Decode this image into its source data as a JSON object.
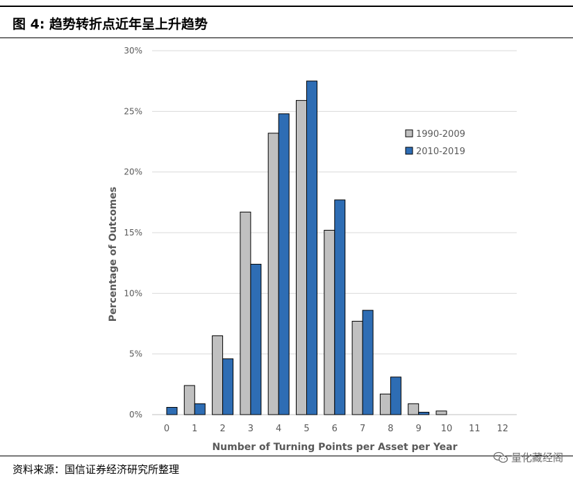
{
  "header": {
    "title": "图 4:  趋势转折点近年呈上升趋势"
  },
  "footer": {
    "source": "资料来源：国信证券经济研究所整理"
  },
  "watermark": {
    "text": "量化藏经阁",
    "icon": "wechat-icon"
  },
  "colors": {
    "series1": "#c0c0c0",
    "series2": "#2e6db4",
    "grid": "#d9d9d9",
    "axis_text": "#595959"
  },
  "chart_data": {
    "type": "bar",
    "xlabel": "Number of Turning Points per Asset per Year",
    "ylabel": "Percentage of Outcomes",
    "categories": [
      "0",
      "1",
      "2",
      "3",
      "4",
      "5",
      "6",
      "7",
      "8",
      "9",
      "10",
      "11",
      "12"
    ],
    "ylim": [
      0,
      30
    ],
    "yticks": [
      "0%",
      "5%",
      "10%",
      "15%",
      "20%",
      "25%",
      "30%"
    ],
    "ytick_values": [
      0,
      5,
      10,
      15,
      20,
      25,
      30
    ],
    "grid": true,
    "legend_position": "right",
    "series": [
      {
        "name": "1990-2009",
        "values": [
          0,
          2.4,
          6.5,
          16.7,
          23.2,
          25.9,
          15.2,
          7.7,
          1.7,
          0.9,
          0.3,
          0,
          0
        ]
      },
      {
        "name": "2010-2019",
        "values": [
          0.6,
          0.9,
          4.6,
          12.4,
          24.8,
          27.5,
          17.7,
          8.6,
          3.1,
          0.2,
          0,
          0,
          0
        ]
      }
    ]
  }
}
